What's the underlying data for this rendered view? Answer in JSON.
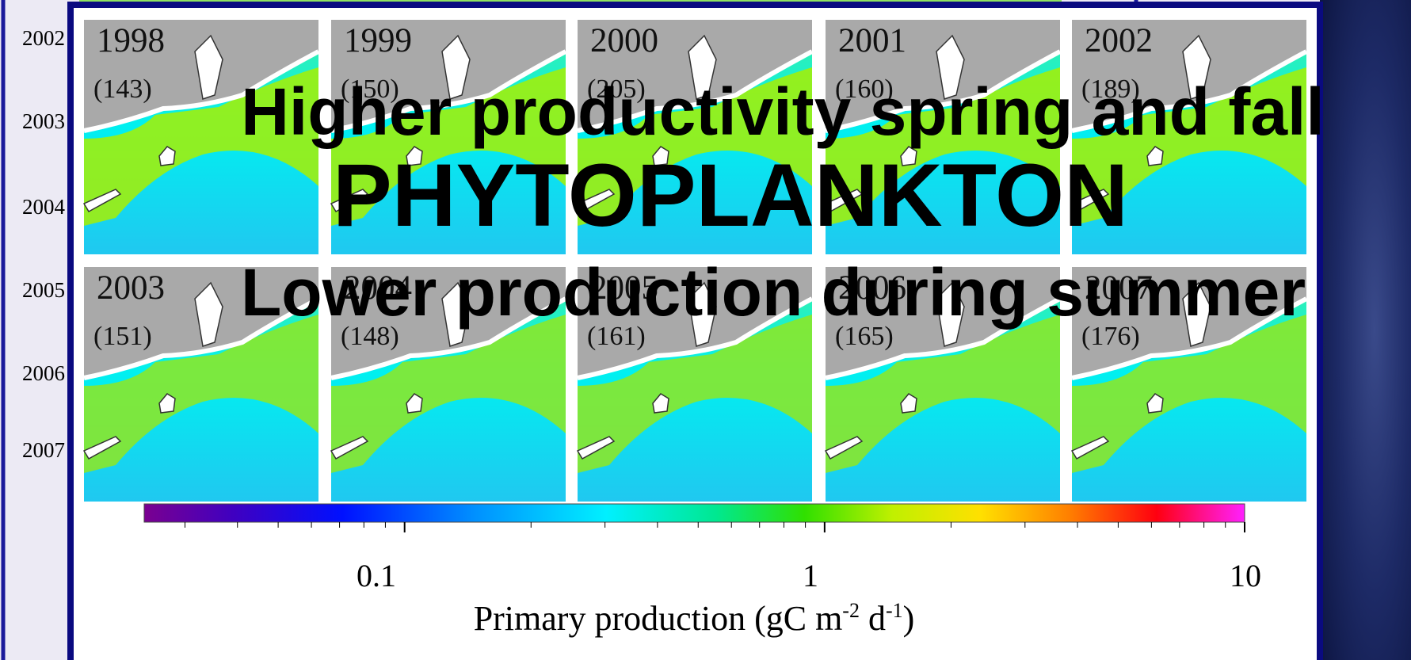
{
  "background_years": [
    "2002",
    "2003",
    "2004",
    "2005",
    "2006",
    "2007"
  ],
  "panels": [
    {
      "year": "1998",
      "value": "(143)"
    },
    {
      "year": "1999",
      "value": "(150)"
    },
    {
      "year": "2000",
      "value": "(205)"
    },
    {
      "year": "2001",
      "value": "(160)"
    },
    {
      "year": "2002",
      "value": "(189)"
    },
    {
      "year": "2003",
      "value": "(151)"
    },
    {
      "year": "2004",
      "value": "(148)"
    },
    {
      "year": "2005",
      "value": "(161)"
    },
    {
      "year": "2006",
      "value": "(165)"
    },
    {
      "year": "2007",
      "value": "(176)"
    }
  ],
  "colorbar": {
    "ticks": [
      "0.1",
      "1",
      "10"
    ],
    "label": [
      "Primary production (gC m",
      "-2",
      " d",
      "-1",
      ")"
    ]
  },
  "overlay": {
    "line1": "Higher productivity spring and fall",
    "line2": "PHYTOPLANKTON",
    "line3": "Lower production during summer"
  }
}
